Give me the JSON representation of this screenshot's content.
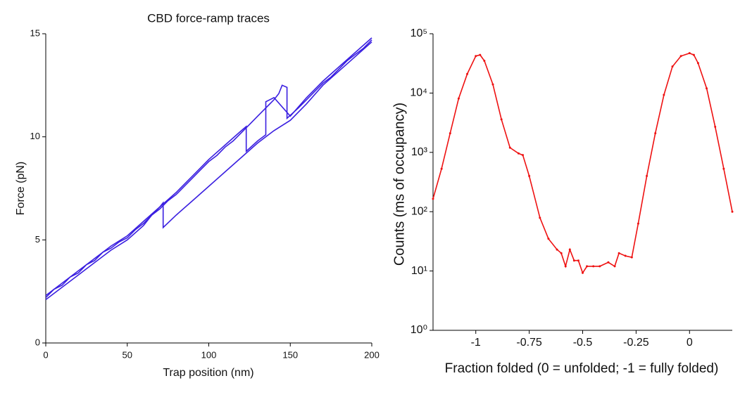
{
  "chart_data": [
    {
      "type": "line",
      "title": "CBD force-ramp traces",
      "x_label": "Trap position (nm)",
      "y_label": "Force (pN)",
      "xlim": [
        0,
        200
      ],
      "ylim": [
        0,
        15
      ],
      "xticks": [
        0,
        50,
        100,
        150,
        200
      ],
      "yticks": [
        0,
        5,
        10,
        15
      ],
      "log_y": false,
      "markers": false,
      "series": [
        {
          "color": "#3a1fe0",
          "x": [
            0,
            5,
            10,
            15,
            20,
            25,
            30,
            35,
            40,
            45,
            50,
            55,
            60,
            65,
            70,
            75,
            80,
            85,
            90,
            95,
            100,
            105,
            110,
            115,
            120,
            125,
            130,
            135,
            140,
            143,
            145,
            148,
            148,
            155,
            160,
            165,
            170,
            175,
            180,
            185,
            190,
            195,
            200
          ],
          "values": [
            2.2,
            2.6,
            2.8,
            3.2,
            3.4,
            3.8,
            4.0,
            4.4,
            4.6,
            4.9,
            5.1,
            5.5,
            5.8,
            6.2,
            6.5,
            6.9,
            7.2,
            7.6,
            8.0,
            8.4,
            8.8,
            9.1,
            9.5,
            9.8,
            10.2,
            10.6,
            11.0,
            11.4,
            11.8,
            12.1,
            12.5,
            12.4,
            10.9,
            11.4,
            11.8,
            12.2,
            12.6,
            12.9,
            13.3,
            13.7,
            14.0,
            14.3,
            14.7
          ]
        },
        {
          "color": "#3a1fe0",
          "x": [
            0,
            10,
            20,
            30,
            40,
            50,
            60,
            65,
            70,
            72,
            72,
            80,
            90,
            100,
            110,
            120,
            130,
            140,
            150,
            160,
            170,
            180,
            190,
            200
          ],
          "values": [
            2.1,
            2.7,
            3.3,
            3.9,
            4.5,
            5.0,
            5.7,
            6.2,
            6.6,
            6.8,
            5.6,
            6.2,
            6.9,
            7.6,
            8.3,
            9.0,
            9.7,
            10.3,
            10.8,
            11.6,
            12.5,
            13.2,
            13.9,
            14.6
          ]
        },
        {
          "color": "#3a1fe0",
          "x": [
            0,
            10,
            20,
            30,
            40,
            50,
            60,
            70,
            80,
            90,
            100,
            110,
            120,
            123,
            123,
            130,
            135,
            135,
            140,
            150,
            160,
            170,
            180,
            190,
            200
          ],
          "values": [
            2.3,
            2.9,
            3.5,
            4.1,
            4.7,
            5.2,
            5.9,
            6.6,
            7.3,
            8.1,
            8.9,
            9.6,
            10.3,
            10.5,
            9.3,
            9.8,
            10.1,
            11.7,
            11.9,
            11.0,
            11.9,
            12.7,
            13.4,
            14.1,
            14.8
          ]
        }
      ]
    },
    {
      "type": "line",
      "x_label": "Fraction folded (0 = unfolded; -1 = fully folded)",
      "y_label": "Counts (ms of occupancy)",
      "xlim": [
        -1.2,
        0.2
      ],
      "ylim": [
        1,
        100000
      ],
      "log_y": true,
      "markers": true,
      "xticks": [
        -1,
        -0.75,
        -0.5,
        -0.25,
        0
      ],
      "yticks": [
        {
          "value": 1,
          "label": "10⁰"
        },
        {
          "value": 10,
          "label": "10¹"
        },
        {
          "value": 100,
          "label": "10²"
        },
        {
          "value": 1000,
          "label": "10³"
        },
        {
          "value": 10000,
          "label": "10⁴"
        },
        {
          "value": 100000,
          "label": "10⁵"
        }
      ],
      "series": [
        {
          "color": "#ee1111",
          "x": [
            -1.2,
            -1.16,
            -1.12,
            -1.08,
            -1.04,
            -1.0,
            -0.98,
            -0.96,
            -0.92,
            -0.88,
            -0.84,
            -0.8,
            -0.78,
            -0.75,
            -0.7,
            -0.66,
            -0.62,
            -0.6,
            -0.58,
            -0.56,
            -0.54,
            -0.52,
            -0.5,
            -0.48,
            -0.45,
            -0.42,
            -0.38,
            -0.35,
            -0.33,
            -0.3,
            -0.27,
            -0.24,
            -0.2,
            -0.16,
            -0.12,
            -0.08,
            -0.04,
            0,
            0.02,
            0.04,
            0.08,
            0.12,
            0.16,
            0.2
          ],
          "values": [
            165,
            530,
            2100,
            8100,
            21000,
            42000,
            44000,
            35000,
            14000,
            3600,
            1200,
            960,
            900,
            400,
            79,
            35,
            23,
            20,
            12,
            23,
            15,
            15,
            9.3,
            12,
            12,
            12,
            14,
            12,
            20,
            18,
            17,
            63,
            400,
            2100,
            9300,
            28000,
            42000,
            47000,
            44000,
            32000,
            12000,
            2700,
            530,
            100
          ]
        }
      ]
    }
  ]
}
